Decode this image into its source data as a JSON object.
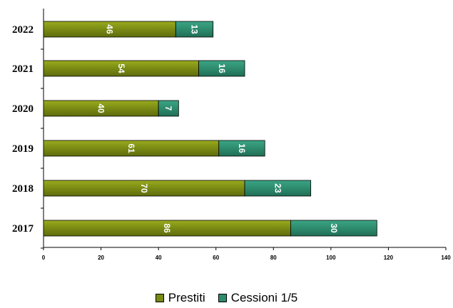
{
  "chart_data": {
    "type": "bar",
    "orientation": "horizontal",
    "stacked": true,
    "categories": [
      "2022",
      "2021",
      "2020",
      "2019",
      "2018",
      "2017"
    ],
    "series": [
      {
        "name": "Prestiti",
        "values": [
          46,
          54,
          40,
          61,
          70,
          86
        ],
        "color": "#7a8a14"
      },
      {
        "name": "Cessioni 1/5",
        "values": [
          13,
          16,
          7,
          16,
          23,
          30
        ],
        "color": "#2e8b6e"
      }
    ],
    "xlim": [
      0,
      140
    ],
    "xticks": [
      0,
      20,
      40,
      60,
      80,
      100,
      120,
      140
    ],
    "grid": false,
    "legend_position": "bottom",
    "title": "",
    "xlabel": "",
    "ylabel": ""
  }
}
